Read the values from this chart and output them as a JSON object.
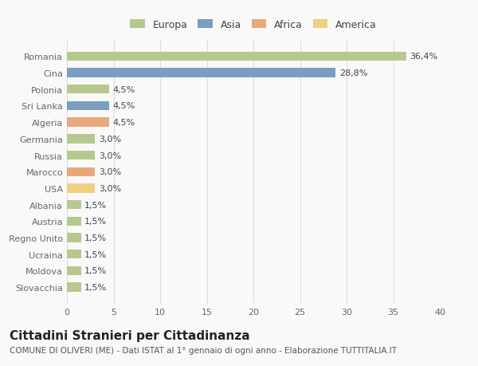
{
  "countries": [
    "Romania",
    "Cina",
    "Polonia",
    "Sri Lanka",
    "Algeria",
    "Germania",
    "Russia",
    "Marocco",
    "USA",
    "Albania",
    "Austria",
    "Regno Unito",
    "Ucraina",
    "Moldova",
    "Slovacchia"
  ],
  "values": [
    36.4,
    28.8,
    4.5,
    4.5,
    4.5,
    3.0,
    3.0,
    3.0,
    3.0,
    1.5,
    1.5,
    1.5,
    1.5,
    1.5,
    1.5
  ],
  "labels": [
    "36,4%",
    "28,8%",
    "4,5%",
    "4,5%",
    "4,5%",
    "3,0%",
    "3,0%",
    "3,0%",
    "3,0%",
    "1,5%",
    "1,5%",
    "1,5%",
    "1,5%",
    "1,5%",
    "1,5%"
  ],
  "continent": [
    "Europa",
    "Asia",
    "Europa",
    "Asia",
    "Africa",
    "Europa",
    "Europa",
    "Africa",
    "America",
    "Europa",
    "Europa",
    "Europa",
    "Europa",
    "Europa",
    "Europa"
  ],
  "colors": {
    "Europa": "#b5c98e",
    "Asia": "#7b9dc0",
    "Africa": "#e8a87c",
    "America": "#f0d080"
  },
  "legend_order": [
    "Europa",
    "Asia",
    "Africa",
    "America"
  ],
  "xlim": [
    0,
    40
  ],
  "xticks": [
    0,
    5,
    10,
    15,
    20,
    25,
    30,
    35,
    40
  ],
  "title": "Cittadini Stranieri per Cittadinanza",
  "subtitle": "COMUNE DI OLIVERI (ME) - Dati ISTAT al 1° gennaio di ogni anno - Elaborazione TUTTITALIA.IT",
  "bg_color": "#f9f9f9",
  "grid_color": "#dddddd",
  "bar_height": 0.55,
  "title_fontsize": 11,
  "subtitle_fontsize": 7.5,
  "label_fontsize": 8,
  "tick_fontsize": 8,
  "legend_fontsize": 9
}
